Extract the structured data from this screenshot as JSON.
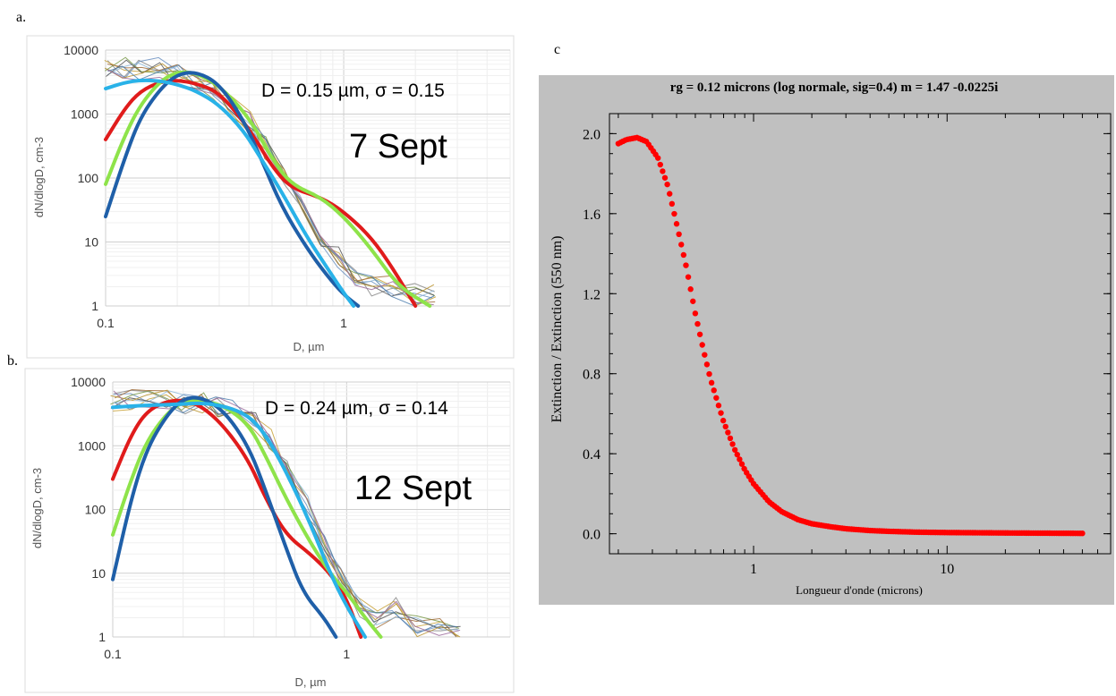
{
  "panel_labels": {
    "a": "a.",
    "b": "b.",
    "c": "c"
  },
  "chart_data": [
    {
      "id": "a",
      "type": "line",
      "xscale": "log",
      "yscale": "log",
      "xlim": [
        0.1,
        5
      ],
      "ylim": [
        1,
        10000
      ],
      "xlabel": "D, µm",
      "ylabel": "dN/dlogD, cm-3",
      "xticks": [
        {
          "v": 0.1,
          "label": "0.1"
        },
        {
          "v": 1,
          "label": "1"
        }
      ],
      "yticks": [
        {
          "v": 1,
          "label": "1"
        },
        {
          "v": 10,
          "label": "10"
        },
        {
          "v": 100,
          "label": "100"
        },
        {
          "v": 1000,
          "label": "1000"
        },
        {
          "v": 10000,
          "label": "10000"
        }
      ],
      "annotations": {
        "params": "D = 0.15 µm, σ = 0.15",
        "date": "7 Sept"
      },
      "grid": true,
      "measured": {
        "x": [
          0.1,
          0.12,
          0.14,
          0.17,
          0.2,
          0.24,
          0.28,
          0.33,
          0.4,
          0.47,
          0.56,
          0.67,
          0.8,
          0.95,
          1.12,
          1.33,
          1.6,
          2.0,
          2.4
        ],
        "y": [
          5000,
          5300,
          5000,
          5200,
          4200,
          3500,
          2500,
          1500,
          800,
          300,
          110,
          40,
          12,
          6,
          3,
          2,
          2,
          1.5,
          1.5
        ],
        "colors": [
          "#888888",
          "#c9a23a",
          "#6a8fbf",
          "#7a9a4a",
          "#a06c3a",
          "#8fb8d8",
          "#555555",
          "#b8902a",
          "#4f7fae",
          "#9b6a9b"
        ]
      },
      "series": [
        {
          "color": "#e01b1b",
          "points": [
            [
              0.1,
              400
            ],
            [
              0.12,
              1200
            ],
            [
              0.14,
              2300
            ],
            [
              0.17,
              3200
            ],
            [
              0.2,
              3400
            ],
            [
              0.24,
              3000
            ],
            [
              0.3,
              2200
            ],
            [
              0.4,
              600
            ],
            [
              0.5,
              150
            ],
            [
              0.6,
              70
            ],
            [
              0.8,
              50
            ],
            [
              1.0,
              30
            ],
            [
              1.3,
              12
            ],
            [
              1.6,
              4
            ],
            [
              2.0,
              1
            ]
          ]
        },
        {
          "color": "#8ee34a",
          "points": [
            [
              0.1,
              80
            ],
            [
              0.12,
              450
            ],
            [
              0.14,
              1400
            ],
            [
              0.17,
              3300
            ],
            [
              0.2,
              4600
            ],
            [
              0.24,
              4400
            ],
            [
              0.3,
              2800
            ],
            [
              0.4,
              900
            ],
            [
              0.5,
              200
            ],
            [
              0.6,
              80
            ],
            [
              0.8,
              50
            ],
            [
              1.0,
              25
            ],
            [
              1.3,
              8
            ],
            [
              1.7,
              2
            ],
            [
              2.3,
              1
            ]
          ]
        },
        {
          "color": "#1f5fa8",
          "points": [
            [
              0.1,
              25
            ],
            [
              0.12,
              200
            ],
            [
              0.14,
              900
            ],
            [
              0.17,
              2500
            ],
            [
              0.2,
              4200
            ],
            [
              0.24,
              4600
            ],
            [
              0.3,
              3000
            ],
            [
              0.38,
              800
            ],
            [
              0.45,
              200
            ],
            [
              0.55,
              35
            ],
            [
              0.7,
              8
            ],
            [
              0.85,
              3
            ],
            [
              1.0,
              1.5
            ],
            [
              1.15,
              1
            ]
          ]
        },
        {
          "color": "#29b2e8",
          "points": [
            [
              0.1,
              2500
            ],
            [
              0.12,
              3100
            ],
            [
              0.14,
              3400
            ],
            [
              0.17,
              3300
            ],
            [
              0.2,
              2900
            ],
            [
              0.24,
              2300
            ],
            [
              0.3,
              1400
            ],
            [
              0.38,
              550
            ],
            [
              0.45,
              200
            ],
            [
              0.55,
              60
            ],
            [
              0.7,
              12
            ],
            [
              0.85,
              4
            ],
            [
              1.0,
              1.6
            ],
            [
              1.1,
              1
            ]
          ]
        }
      ]
    },
    {
      "id": "b",
      "type": "line",
      "xscale": "log",
      "yscale": "log",
      "xlim": [
        0.1,
        5
      ],
      "ylim": [
        1,
        10000
      ],
      "xlabel": "D, µm",
      "ylabel": "dN/dlogD, cm-3",
      "xticks": [
        {
          "v": 0.1,
          "label": "0.1"
        },
        {
          "v": 1,
          "label": "1"
        }
      ],
      "yticks": [
        {
          "v": 1,
          "label": "1"
        },
        {
          "v": 10,
          "label": "10"
        },
        {
          "v": 100,
          "label": "100"
        },
        {
          "v": 1000,
          "label": "1000"
        },
        {
          "v": 10000,
          "label": "10000"
        }
      ],
      "annotations": {
        "params": "D = 0.24 µm, σ = 0.14",
        "date": "12 Sept"
      },
      "grid": true,
      "measured": {
        "x": [
          0.1,
          0.12,
          0.14,
          0.17,
          0.2,
          0.24,
          0.28,
          0.33,
          0.4,
          0.47,
          0.56,
          0.67,
          0.8,
          0.95,
          1.12,
          1.33,
          1.6,
          2.0,
          2.5,
          3.0
        ],
        "y": [
          5000,
          5200,
          5000,
          5300,
          4500,
          4800,
          4200,
          3500,
          2500,
          1200,
          400,
          120,
          30,
          8,
          3,
          2,
          3,
          1.5,
          1.3,
          1
        ],
        "colors": [
          "#888888",
          "#c9a23a",
          "#6a8fbf",
          "#7a9a4a",
          "#a06c3a",
          "#8fb8d8",
          "#555555",
          "#b8902a",
          "#4f7fae",
          "#9b6a9b"
        ]
      },
      "series": [
        {
          "color": "#e01b1b",
          "points": [
            [
              0.1,
              300
            ],
            [
              0.12,
              1500
            ],
            [
              0.14,
              3500
            ],
            [
              0.17,
              5000
            ],
            [
              0.2,
              5200
            ],
            [
              0.24,
              4200
            ],
            [
              0.3,
              2000
            ],
            [
              0.38,
              600
            ],
            [
              0.45,
              150
            ],
            [
              0.55,
              40
            ],
            [
              0.7,
              20
            ],
            [
              0.85,
              10
            ],
            [
              1.0,
              4
            ],
            [
              1.15,
              1
            ]
          ]
        },
        {
          "color": "#8ee34a",
          "points": [
            [
              0.1,
              40
            ],
            [
              0.12,
              300
            ],
            [
              0.14,
              1200
            ],
            [
              0.17,
              3200
            ],
            [
              0.2,
              5000
            ],
            [
              0.24,
              5200
            ],
            [
              0.3,
              4200
            ],
            [
              0.38,
              2200
            ],
            [
              0.45,
              700
            ],
            [
              0.55,
              150
            ],
            [
              0.7,
              30
            ],
            [
              0.85,
              10
            ],
            [
              1.0,
              5
            ],
            [
              1.2,
              2
            ],
            [
              1.4,
              1
            ]
          ]
        },
        {
          "color": "#1f5fa8",
          "points": [
            [
              0.1,
              8
            ],
            [
              0.12,
              150
            ],
            [
              0.14,
              900
            ],
            [
              0.17,
              3000
            ],
            [
              0.2,
              5500
            ],
            [
              0.24,
              5800
            ],
            [
              0.3,
              3500
            ],
            [
              0.38,
              1000
            ],
            [
              0.45,
              200
            ],
            [
              0.55,
              25
            ],
            [
              0.65,
              5
            ],
            [
              0.8,
              2
            ],
            [
              0.9,
              1
            ]
          ]
        },
        {
          "color": "#29b2e8",
          "points": [
            [
              0.1,
              4000
            ],
            [
              0.12,
              4200
            ],
            [
              0.14,
              4300
            ],
            [
              0.17,
              4400
            ],
            [
              0.2,
              4500
            ],
            [
              0.24,
              4700
            ],
            [
              0.3,
              4200
            ],
            [
              0.38,
              3000
            ],
            [
              0.45,
              1500
            ],
            [
              0.55,
              400
            ],
            [
              0.7,
              60
            ],
            [
              0.85,
              10
            ],
            [
              1.0,
              3
            ],
            [
              1.2,
              1
            ]
          ]
        }
      ]
    },
    {
      "id": "c",
      "type": "scatter",
      "xscale": "log",
      "yscale": "linear",
      "title": "rg = 0.12 microns (log normale, sig=0.4) m = 1.47 -0.0225i",
      "xlabel": "Longueur d'onde (microns)",
      "ylabel": "Extinction / Extinction (550 nm)",
      "xlim": [
        0.18,
        70
      ],
      "ylim": [
        -0.1,
        2.1
      ],
      "xticks": [
        {
          "v": 1,
          "label": "1"
        },
        {
          "v": 10,
          "label": "10"
        }
      ],
      "yticks": [
        {
          "v": 0.0,
          "label": "0.0"
        },
        {
          "v": 0.4,
          "label": "0.4"
        },
        {
          "v": 0.8,
          "label": "0.8"
        },
        {
          "v": 1.2,
          "label": "1.2"
        },
        {
          "v": 1.6,
          "label": "1.6"
        },
        {
          "v": 2.0,
          "label": "2.0"
        }
      ],
      "point_color": "#ff0000",
      "background": "#c0c0c0",
      "x_range_points": [
        0.2,
        50
      ],
      "point_count": 200,
      "curve": [
        [
          0.2,
          1.95
        ],
        [
          0.22,
          1.97
        ],
        [
          0.25,
          1.98
        ],
        [
          0.28,
          1.96
        ],
        [
          0.32,
          1.88
        ],
        [
          0.36,
          1.74
        ],
        [
          0.4,
          1.55
        ],
        [
          0.45,
          1.33
        ],
        [
          0.5,
          1.1
        ],
        [
          0.55,
          0.92
        ],
        [
          0.6,
          0.77
        ],
        [
          0.7,
          0.56
        ],
        [
          0.8,
          0.42
        ],
        [
          0.9,
          0.32
        ],
        [
          1.0,
          0.25
        ],
        [
          1.2,
          0.16
        ],
        [
          1.4,
          0.11
        ],
        [
          1.7,
          0.07
        ],
        [
          2.0,
          0.05
        ],
        [
          2.5,
          0.035
        ],
        [
          3.0,
          0.025
        ],
        [
          4.0,
          0.016
        ],
        [
          5.0,
          0.012
        ],
        [
          7.0,
          0.008
        ],
        [
          10.0,
          0.006
        ],
        [
          20.0,
          0.004
        ],
        [
          50.0,
          0.002
        ]
      ]
    }
  ]
}
